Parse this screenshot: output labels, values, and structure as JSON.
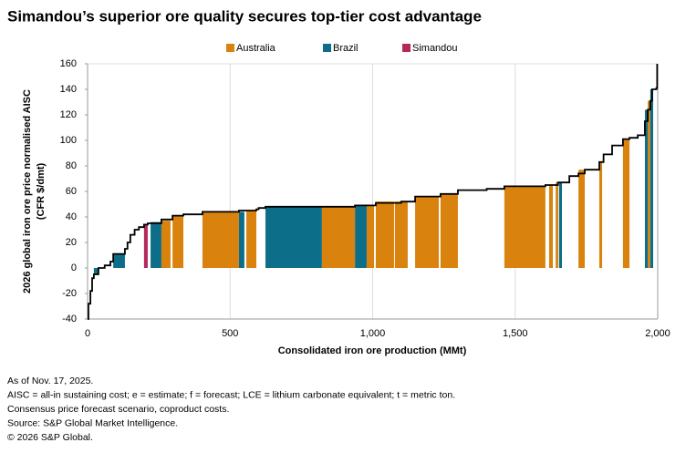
{
  "chart_data": {
    "type": "cost_curve",
    "title": "Simandou’s superior ore quality secures top-tier cost advantage",
    "xlabel": "Consolidated iron ore production (MMt)",
    "ylabel": [
      "2026 global iron ore price normalised AISC",
      "(CFR $/dmt)"
    ],
    "xlim": [
      0,
      2000
    ],
    "ylim": [
      -40,
      160
    ],
    "xticks": [
      0,
      500,
      {
        "value": 1000,
        "label": "1,000"
      },
      {
        "value": 1500,
        "label": "1,500"
      },
      {
        "value": 2000,
        "label": "2,000"
      }
    ],
    "yticks": [
      -40,
      -20,
      0,
      20,
      40,
      60,
      80,
      100,
      120,
      140,
      160
    ],
    "grid": true,
    "legend": "top",
    "series": [
      {
        "name": "Australia",
        "color": "#d9820e",
        "x_start": [
          259,
          298,
          403,
          557,
          822,
          979,
          1011,
          1078,
          1149,
          1238,
          1462,
          1619,
          1642,
          1722,
          1795,
          1878,
          1965
        ],
        "x_end": [
          291,
          336,
          531,
          592,
          938,
          1005,
          1075,
          1123,
          1232,
          1299,
          1606,
          1632,
          1651,
          1744,
          1805,
          1901,
          1974
        ],
        "values": [
          37,
          41,
          44,
          45,
          48,
          49,
          52,
          52,
          56,
          58,
          64,
          65,
          67,
          77,
          83,
          101,
          131
        ]
      },
      {
        "name": "Brazil",
        "color": "#0d6e8a",
        "x_start": [
          22,
          90,
          221,
          531,
          624,
          938,
          1654,
          1955,
          1974
        ],
        "x_end": [
          38,
          131,
          259,
          550,
          822,
          979,
          1664,
          1965,
          1984
        ],
        "values": [
          -5,
          11,
          36,
          44,
          48,
          49,
          67,
          124,
          140
        ]
      },
      {
        "name": "Simandou",
        "color": "#b5285e",
        "x_start": [
          198
        ],
        "x_end": [
          211
        ],
        "values": [
          34
        ]
      }
    ],
    "curve": {
      "x": [
        0,
        3,
        10,
        16,
        22,
        38,
        60,
        80,
        90,
        131,
        140,
        150,
        165,
        180,
        198,
        211,
        259,
        298,
        336,
        403,
        531,
        592,
        600,
        624,
        938,
        1011,
        1100,
        1149,
        1238,
        1299,
        1400,
        1462,
        1606,
        1650,
        1690,
        1722,
        1744,
        1795,
        1810,
        1840,
        1878,
        1901,
        1930,
        1955,
        1965,
        1974,
        1980,
        1995,
        1998
      ],
      "values": [
        -40,
        -28,
        -18,
        -8,
        -5,
        0,
        2,
        5,
        11,
        15,
        20,
        26,
        30,
        32,
        34,
        35,
        38,
        41,
        42,
        44,
        45,
        46,
        47,
        48,
        49,
        51,
        52,
        56,
        58,
        61,
        62,
        64,
        65,
        67,
        72,
        74,
        77,
        83,
        89,
        96,
        101,
        102,
        104,
        115,
        124,
        131,
        140,
        141,
        160
      ]
    },
    "notes": [
      "As of Nov. 17, 2025.",
      "AISC = all-in sustaining cost; e = estimate; f = forecast; LCE = lithium carbonate equivalent; t = metric ton.",
      "Consensus price forecast scenario, coproduct costs.",
      "Source: S&P Global Market Intelligence.",
      "© 2026 S&P Global."
    ]
  }
}
